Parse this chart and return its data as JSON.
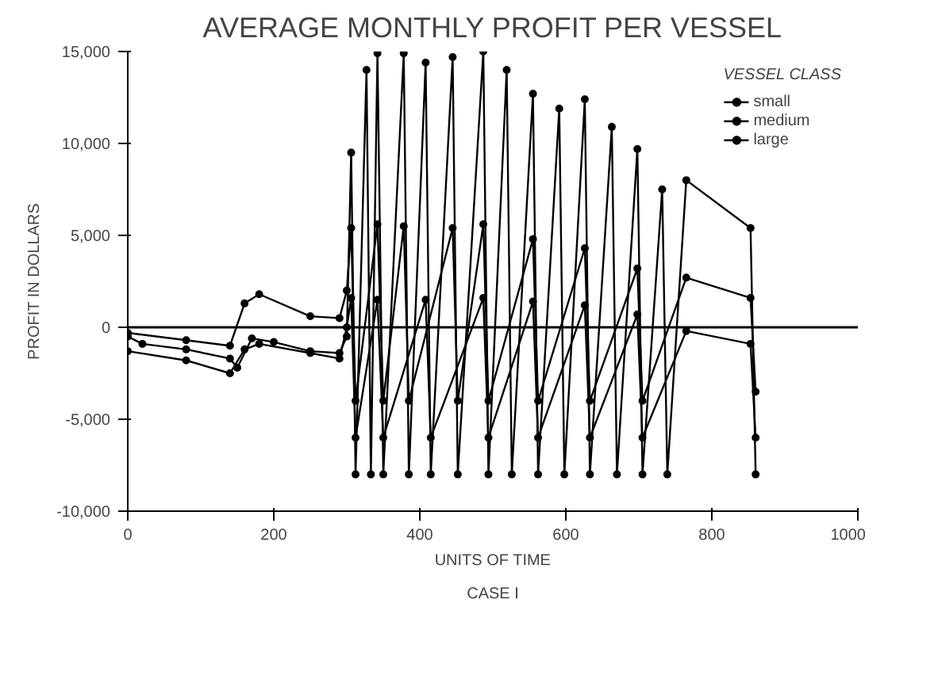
{
  "chart_data": {
    "type": "line",
    "title": "AVERAGE MONTHLY PROFIT PER VESSEL",
    "xlabel": "UNITS OF TIME",
    "ylabel": "PROFIT IN DOLLARS",
    "legend_title": "VESSEL CLASS",
    "annotations": [
      "CASE I"
    ],
    "xlim": [
      0,
      1000
    ],
    "xticks": [
      0,
      200,
      400,
      600,
      800,
      1000
    ],
    "ylim": [
      -10000,
      15000
    ],
    "yticks": [
      {
        "value": -10000,
        "label": "-10,000"
      },
      {
        "value": -5000,
        "label": "-5,000"
      },
      0,
      {
        "value": 5000,
        "label": "5,000"
      },
      {
        "value": 10000,
        "label": "10,000"
      },
      {
        "value": 15000,
        "label": "15,000"
      }
    ],
    "marker": "circle",
    "legend": "top right",
    "grid": false,
    "ref_lines": [
      {
        "axis": "y",
        "value": 0,
        "label": null
      }
    ],
    "series": [
      {
        "name": "small",
        "color": "#000000",
        "x": [
          0,
          20,
          80,
          140,
          150,
          170,
          200,
          250,
          290,
          300,
          306,
          312,
          327,
          333,
          342,
          350,
          378,
          385,
          408,
          415,
          445,
          452,
          487,
          494,
          519,
          526,
          555,
          562,
          591,
          598,
          626,
          633,
          663,
          670,
          698,
          705,
          732,
          739,
          765,
          853,
          860
        ],
        "values": [
          -500,
          -900,
          -1200,
          -1700,
          -2200,
          -600,
          -800,
          -1300,
          -1400,
          -500,
          9500,
          -8000,
          14000,
          -8000,
          14900,
          -8000,
          14900,
          -8000,
          14400,
          -8000,
          14700,
          -8000,
          15000,
          -8000,
          14000,
          -8000,
          12700,
          -8000,
          11900,
          -8000,
          12400,
          -8000,
          10900,
          -8000,
          9700,
          -8000,
          7500,
          -8000,
          8000,
          5400,
          -8000
        ]
      },
      {
        "name": "medium",
        "color": "#000000",
        "x": [
          0,
          80,
          140,
          160,
          180,
          250,
          290,
          300,
          306,
          312,
          342,
          350,
          378,
          385,
          445,
          452,
          487,
          494,
          555,
          562,
          626,
          633,
          698,
          705,
          765,
          853,
          860
        ],
        "values": [
          -300,
          -700,
          -1000,
          1300,
          1800,
          600,
          500,
          2000,
          5400,
          -4000,
          5600,
          -4000,
          5500,
          -4000,
          5400,
          -4000,
          5600,
          -4000,
          4800,
          -4000,
          4300,
          -4000,
          3200,
          -4000,
          2700,
          1600,
          -3500
        ]
      },
      {
        "name": "large",
        "color": "#000000",
        "x": [
          0,
          80,
          140,
          160,
          180,
          250,
          290,
          300,
          306,
          312,
          342,
          350,
          408,
          415,
          487,
          494,
          555,
          562,
          626,
          633,
          698,
          705,
          765,
          853,
          860
        ],
        "values": [
          -1300,
          -1800,
          -2500,
          -1200,
          -900,
          -1400,
          -1700,
          0,
          1600,
          -6000,
          1500,
          -6000,
          1500,
          -6000,
          1600,
          -6000,
          1400,
          -6000,
          1200,
          -6000,
          700,
          -6000,
          -200,
          -900,
          -6000
        ]
      }
    ]
  }
}
